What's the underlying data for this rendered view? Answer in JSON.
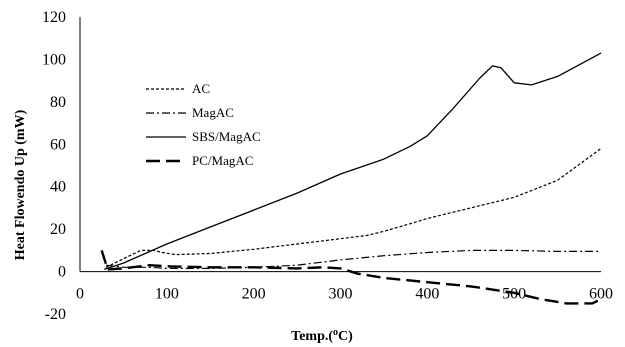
{
  "chart_data": {
    "type": "line",
    "title": "",
    "xlabel": "Temp.(°C)",
    "xlabel_parts": {
      "pre": "Temp.(",
      "sup": "o",
      "post": "C)"
    },
    "ylabel": "Heat Flowendo Up (mW)",
    "xlim": [
      0,
      600
    ],
    "ylim": [
      -20,
      120
    ],
    "xticks": [
      0,
      100,
      200,
      300,
      400,
      500,
      600
    ],
    "yticks": [
      -20,
      0,
      20,
      40,
      60,
      80,
      100,
      120
    ],
    "grid": false,
    "legend_position": "upper-left",
    "series": [
      {
        "name": "AC",
        "style": "dotted",
        "x": [
          30,
          50,
          70,
          85,
          95,
          110,
          150,
          200,
          250,
          300,
          330,
          350,
          380,
          400,
          450,
          500,
          550,
          600
        ],
        "y": [
          2,
          6,
          10,
          10,
          9,
          8,
          8.5,
          10.5,
          13,
          15.5,
          17,
          19,
          22.5,
          25,
          30,
          35,
          43,
          58
        ]
      },
      {
        "name": "MagAC",
        "style": "dash-dot",
        "x": [
          30,
          50,
          80,
          100,
          150,
          200,
          250,
          300,
          350,
          400,
          450,
          500,
          550,
          600
        ],
        "y": [
          3,
          2,
          2,
          1.5,
          1.5,
          2,
          3,
          5.5,
          7.5,
          9,
          10,
          10,
          9.5,
          9.5
        ]
      },
      {
        "name": "SBS/MagAC",
        "style": "solid",
        "x": [
          28,
          50,
          100,
          150,
          200,
          250,
          300,
          350,
          380,
          400,
          430,
          460,
          475,
          485,
          500,
          520,
          550,
          600
        ],
        "y": [
          1,
          4,
          13,
          21,
          29,
          37,
          46,
          53,
          59,
          64,
          77,
          91,
          97,
          96,
          89,
          88,
          92,
          103
        ]
      },
      {
        "name": "PC/MagAC",
        "style": "dashed",
        "x": [
          25,
          28,
          32,
          50,
          80,
          100,
          150,
          200,
          250,
          280,
          300,
          320,
          350,
          400,
          450,
          500,
          530,
          560,
          590,
          600
        ],
        "y": [
          10,
          6,
          1,
          1.5,
          3,
          2.5,
          2,
          2,
          1.5,
          2,
          1.5,
          -1,
          -3,
          -5,
          -7,
          -10,
          -13,
          -15,
          -15,
          -13
        ]
      }
    ]
  }
}
